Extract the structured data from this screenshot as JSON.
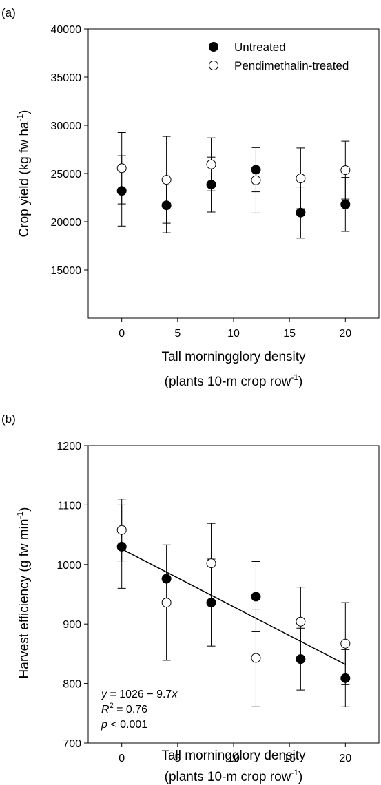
{
  "chart_data": [
    {
      "panel": "(a)",
      "type": "scatter",
      "xlabel": [
        "Tall morningglory density",
        "(plants 10-m crop row",
        "-1",
        ")"
      ],
      "ylabel": [
        "Crop yield (kg fw ha",
        "-1",
        ")"
      ],
      "xlim": [
        -3,
        23
      ],
      "ylim": [
        10000,
        40000
      ],
      "xticks": [
        "0",
        "5",
        "10",
        "15",
        "20"
      ],
      "yticks": [
        "15000",
        "20000",
        "25000",
        "30000",
        "35000",
        "40000"
      ],
      "legend": {
        "position": "top-right",
        "entries": [
          "Untreated",
          "Pendimethalin-treated"
        ]
      },
      "series": [
        {
          "name": "Untreated",
          "marker": "filled-circle",
          "x": [
            0,
            4,
            8,
            12,
            16,
            20
          ],
          "y": [
            23200,
            21700,
            23850,
            25400,
            20950,
            21800
          ],
          "err": [
            3650,
            2850,
            2850,
            2300,
            2650,
            2800
          ]
        },
        {
          "name": "Pendimethalin-treated",
          "marker": "open-circle",
          "x": [
            0,
            4,
            8,
            12,
            16,
            20
          ],
          "y": [
            25550,
            24350,
            25950,
            24300,
            24500,
            25350
          ],
          "err": [
            3700,
            4500,
            2750,
            3400,
            3150,
            3000
          ]
        }
      ]
    },
    {
      "panel": "(b)",
      "type": "scatter",
      "xlabel": [
        "Tall morningglory density",
        "(plants 10-m crop row",
        "-1",
        ")"
      ],
      "ylabel": [
        "Harvest efficiency (g fw min",
        "-1",
        ")"
      ],
      "xlim": [
        -3,
        23
      ],
      "ylim": [
        700,
        1200
      ],
      "xticks": [
        "0",
        "5",
        "10",
        "15",
        "20"
      ],
      "yticks": [
        "700",
        "800",
        "900",
        "1000",
        "1100",
        "1200"
      ],
      "series": [
        {
          "name": "Untreated",
          "marker": "filled-circle",
          "x": [
            0,
            4,
            8,
            12,
            16,
            20
          ],
          "y": [
            1030,
            976,
            936,
            946,
            841,
            809
          ],
          "err": [
            70,
            0,
            73,
            59,
            52,
            48
          ]
        },
        {
          "name": "Pendimethalin-treated",
          "marker": "open-circle",
          "x": [
            0,
            4,
            8,
            12,
            16,
            20
          ],
          "y": [
            1058,
            936,
            1002,
            843,
            904,
            867
          ],
          "err": [
            52,
            97,
            67,
            82,
            58,
            69
          ]
        }
      ],
      "regression": {
        "x": [
          0,
          20
        ],
        "y": [
          1026,
          832
        ]
      },
      "annotation": {
        "eq": [
          "y",
          " = 1026 − 9.7",
          "x"
        ],
        "r2": [
          "R",
          "2",
          " = 0.76"
        ],
        "p": [
          "p",
          " < 0.001"
        ]
      }
    }
  ]
}
